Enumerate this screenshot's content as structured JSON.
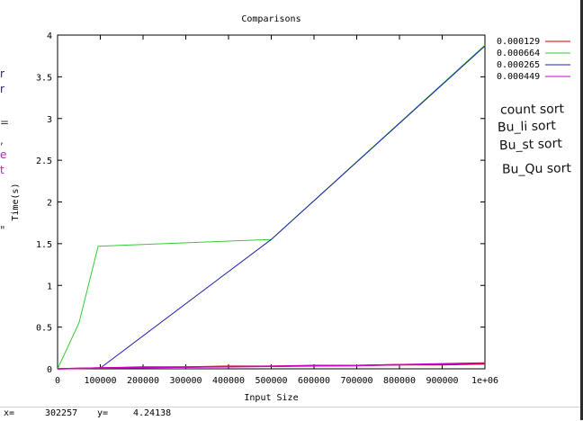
{
  "window": {
    "bg": "#ffffff"
  },
  "annotations": [
    "count sort",
    "Bu_li sort",
    "Bu_st sort",
    "Bu_Qu sort"
  ],
  "left_edge_fragments": [
    {
      "text": "r",
      "color": "#1a1aa8"
    },
    {
      "text": "r",
      "color": "#1a1aa8"
    },
    {
      "text": "=",
      "color": "#333333"
    },
    {
      "text": ",",
      "color": "#333333"
    },
    {
      "text": "e",
      "color": "#c020c0"
    },
    {
      "text": "t",
      "color": "#c020c0"
    },
    {
      "text": "\"",
      "color": "#333333"
    }
  ],
  "status": {
    "x_label": "x=",
    "x_value": "302257",
    "y_label": "y=",
    "y_value": "4.24138"
  },
  "chart_data": {
    "type": "line",
    "title": "Comparisons",
    "xlabel": "Input Size",
    "ylabel": "Time(s)",
    "xlim": [
      0,
      1000000
    ],
    "ylim": [
      0,
      4
    ],
    "x_ticks": [
      {
        "v": 0,
        "label": "0"
      },
      {
        "v": 100000,
        "label": "100000"
      },
      {
        "v": 200000,
        "label": "200000"
      },
      {
        "v": 300000,
        "label": "300000"
      },
      {
        "v": 400000,
        "label": "400000"
      },
      {
        "v": 500000,
        "label": "500000"
      },
      {
        "v": 600000,
        "label": "600000"
      },
      {
        "v": 700000,
        "label": "700000"
      },
      {
        "v": 800000,
        "label": "800000"
      },
      {
        "v": 900000,
        "label": "900000"
      },
      {
        "v": 1000000,
        "label": "1e+06"
      }
    ],
    "y_ticks": [
      {
        "v": 0,
        "label": "0"
      },
      {
        "v": 0.5,
        "label": "0.5"
      },
      {
        "v": 1,
        "label": "1"
      },
      {
        "v": 1.5,
        "label": "1.5"
      },
      {
        "v": 2,
        "label": "2"
      },
      {
        "v": 2.5,
        "label": "2.5"
      },
      {
        "v": 3,
        "label": "3"
      },
      {
        "v": 3.5,
        "label": "3.5"
      },
      {
        "v": 4,
        "label": "4"
      }
    ],
    "grid": false,
    "legend_position": "outside-right",
    "series": [
      {
        "name": "0.000129",
        "color": "#cc0000",
        "points": [
          [
            0,
            0
          ],
          [
            100000,
            0.01
          ],
          [
            200000,
            0.02
          ],
          [
            300000,
            0.02
          ],
          [
            400000,
            0.03
          ],
          [
            500000,
            0.03
          ],
          [
            600000,
            0.04
          ],
          [
            700000,
            0.04
          ],
          [
            800000,
            0.05
          ],
          [
            900000,
            0.05
          ],
          [
            1000000,
            0.06
          ]
        ]
      },
      {
        "name": "0.000664",
        "color": "#33cc33",
        "points": [
          [
            0,
            0
          ],
          [
            50000,
            0.55
          ],
          [
            95000,
            1.47
          ],
          [
            500000,
            1.55
          ],
          [
            1000000,
            3.88
          ]
        ]
      },
      {
        "name": "0.000265",
        "color": "#2020b0",
        "points": [
          [
            0,
            0
          ],
          [
            100000,
            0.01
          ],
          [
            500000,
            1.55
          ],
          [
            1000000,
            3.87
          ]
        ]
      },
      {
        "name": "0.000449",
        "color": "#cc00cc",
        "points": [
          [
            0,
            0
          ],
          [
            100000,
            0.01
          ],
          [
            300000,
            0.02
          ],
          [
            500000,
            0.03
          ],
          [
            700000,
            0.04
          ],
          [
            900000,
            0.06
          ],
          [
            1000000,
            0.07
          ]
        ]
      }
    ]
  }
}
